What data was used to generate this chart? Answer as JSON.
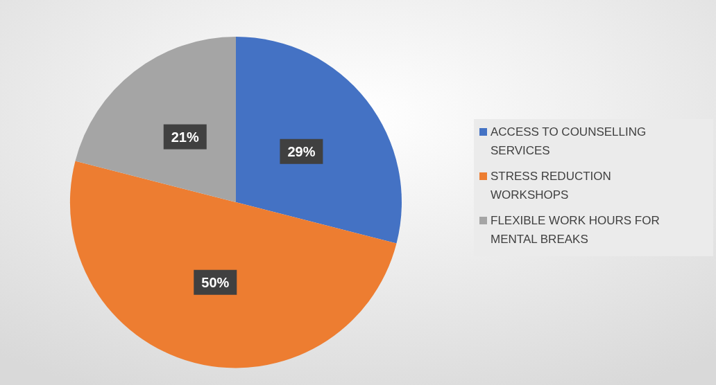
{
  "chart_data": {
    "type": "pie",
    "categories": [
      "ACCESS TO COUNSELLING SERVICES",
      "STRESS REDUCTION WORKSHOPS",
      "FLEXIBLE WORK HOURS FOR MENTAL BREAKS"
    ],
    "values": [
      29,
      50,
      21
    ],
    "colors": [
      "#4472c4",
      "#ed7d31",
      "#a5a5a5"
    ],
    "value_labels": [
      "29%",
      "50%",
      "21%"
    ],
    "legend": "right"
  }
}
